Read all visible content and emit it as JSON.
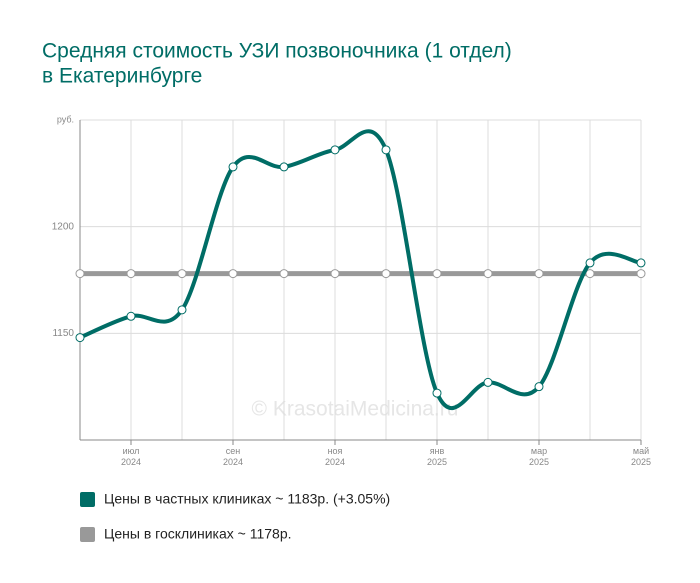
{
  "chart_data": {
    "type": "line",
    "title": [
      "Средняя стоимость УЗИ позвоночника (1 отдел)",
      "в Екатеринбурге"
    ],
    "watermark": "© KrasotaiMedicina.ru",
    "categories": [
      null,
      "июл 2024",
      null,
      "сен 2024",
      null,
      "ноя 2024",
      null,
      "янв 2025",
      null,
      "мар 2025",
      null,
      "май 2025"
    ],
    "series": [
      {
        "name": "Цены в частных клиниках ~ 1183р. (+3.05%)",
        "color": "#006d66",
        "values": [
          1148,
          1158,
          1161,
          1228,
          1228,
          1236,
          1236,
          1122,
          1127,
          1125,
          1183,
          1183
        ]
      },
      {
        "name": "Цены в госклиниках ~ 1178р.",
        "color": "#999999",
        "values": [
          1178,
          1178,
          1178,
          1178,
          1178,
          1178,
          1178,
          1178,
          1178,
          1178,
          1178,
          1178
        ]
      }
    ],
    "ylim": [
      1100,
      1250
    ],
    "yticks": [
      1150,
      1200,
      {
        "value": 1250,
        "label": "руб."
      }
    ],
    "grid": true
  }
}
